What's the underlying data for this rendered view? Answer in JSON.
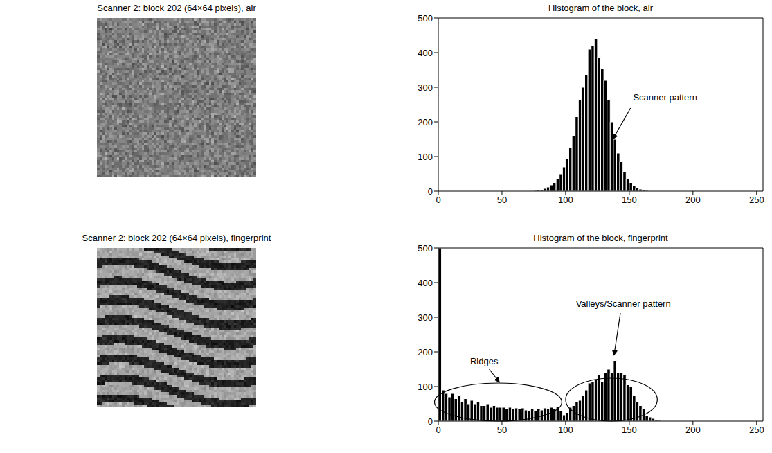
{
  "chart_data": [
    {
      "type": "image",
      "title": "Scanner 2: block 202 (64×64 pixels), air"
    },
    {
      "type": "image",
      "title": "Scanner 2: block 202 (64×64 pixels), fingerprint"
    },
    {
      "type": "histogram",
      "title": "Histogram of the block, air",
      "bins": [
        75,
        77.5,
        80,
        82.5,
        85,
        87.5,
        90,
        92.5,
        95,
        97.5,
        100,
        102.5,
        105,
        107.5,
        110,
        112.5,
        115,
        117.5,
        120,
        122.5,
        125,
        127.5,
        130,
        132.5,
        135,
        137.5,
        140,
        142.5,
        145,
        147.5,
        150,
        152.5,
        155,
        157.5,
        160,
        162.5,
        165
      ],
      "values": [
        2,
        3,
        5,
        8,
        12,
        18,
        25,
        35,
        50,
        70,
        95,
        125,
        160,
        215,
        265,
        300,
        335,
        410,
        420,
        440,
        385,
        355,
        320,
        265,
        200,
        150,
        110,
        85,
        55,
        35,
        25,
        15,
        10,
        6,
        3,
        2
      ],
      "color": "#000000",
      "xlim": [
        0,
        255
      ],
      "ylim": [
        0,
        500
      ],
      "xticks": [
        0,
        50,
        100,
        150,
        200,
        250
      ],
      "yticks": [
        0,
        100,
        200,
        300,
        400,
        500
      ],
      "annotations": [
        "Scanner pattern"
      ]
    },
    {
      "type": "histogram",
      "title": "Histogram of the block, fingerprint",
      "bins": [
        0,
        2.5,
        5,
        7.5,
        10,
        12.5,
        15,
        17.5,
        20,
        22.5,
        25,
        27.5,
        30,
        32.5,
        35,
        37.5,
        40,
        42.5,
        45,
        47.5,
        50,
        52.5,
        55,
        57.5,
        60,
        62.5,
        65,
        67.5,
        70,
        72.5,
        75,
        77.5,
        80,
        82.5,
        85,
        87.5,
        90,
        92.5,
        95,
        97.5,
        100,
        102.5,
        105,
        107.5,
        110,
        112.5,
        115,
        117.5,
        120,
        122.5,
        125,
        127.5,
        130,
        132.5,
        135,
        137.5,
        140,
        142.5,
        145,
        147.5,
        150,
        152.5,
        155,
        157.5,
        160,
        162.5,
        165,
        167.5,
        170,
        172.5,
        175
      ],
      "values": [
        500,
        90,
        80,
        70,
        80,
        65,
        75,
        55,
        65,
        50,
        60,
        50,
        55,
        45,
        45,
        50,
        40,
        45,
        40,
        40,
        40,
        35,
        40,
        35,
        38,
        35,
        38,
        32,
        30,
        35,
        30,
        35,
        32,
        38,
        35,
        40,
        35,
        42,
        30,
        18,
        25,
        40,
        45,
        55,
        60,
        75,
        90,
        110,
        115,
        120,
        135,
        115,
        140,
        150,
        140,
        175,
        140,
        140,
        135,
        105,
        100,
        75,
        55,
        45,
        35,
        15,
        12,
        8,
        5,
        2
      ],
      "color": "#000000",
      "xlim": [
        0,
        255
      ],
      "ylim": [
        0,
        500
      ],
      "xticks": [
        0,
        50,
        100,
        150,
        200,
        250
      ],
      "yticks": [
        0,
        100,
        200,
        300,
        400,
        500
      ],
      "annotations": [
        "Ridges",
        "Valleys/Scanner pattern"
      ]
    }
  ]
}
